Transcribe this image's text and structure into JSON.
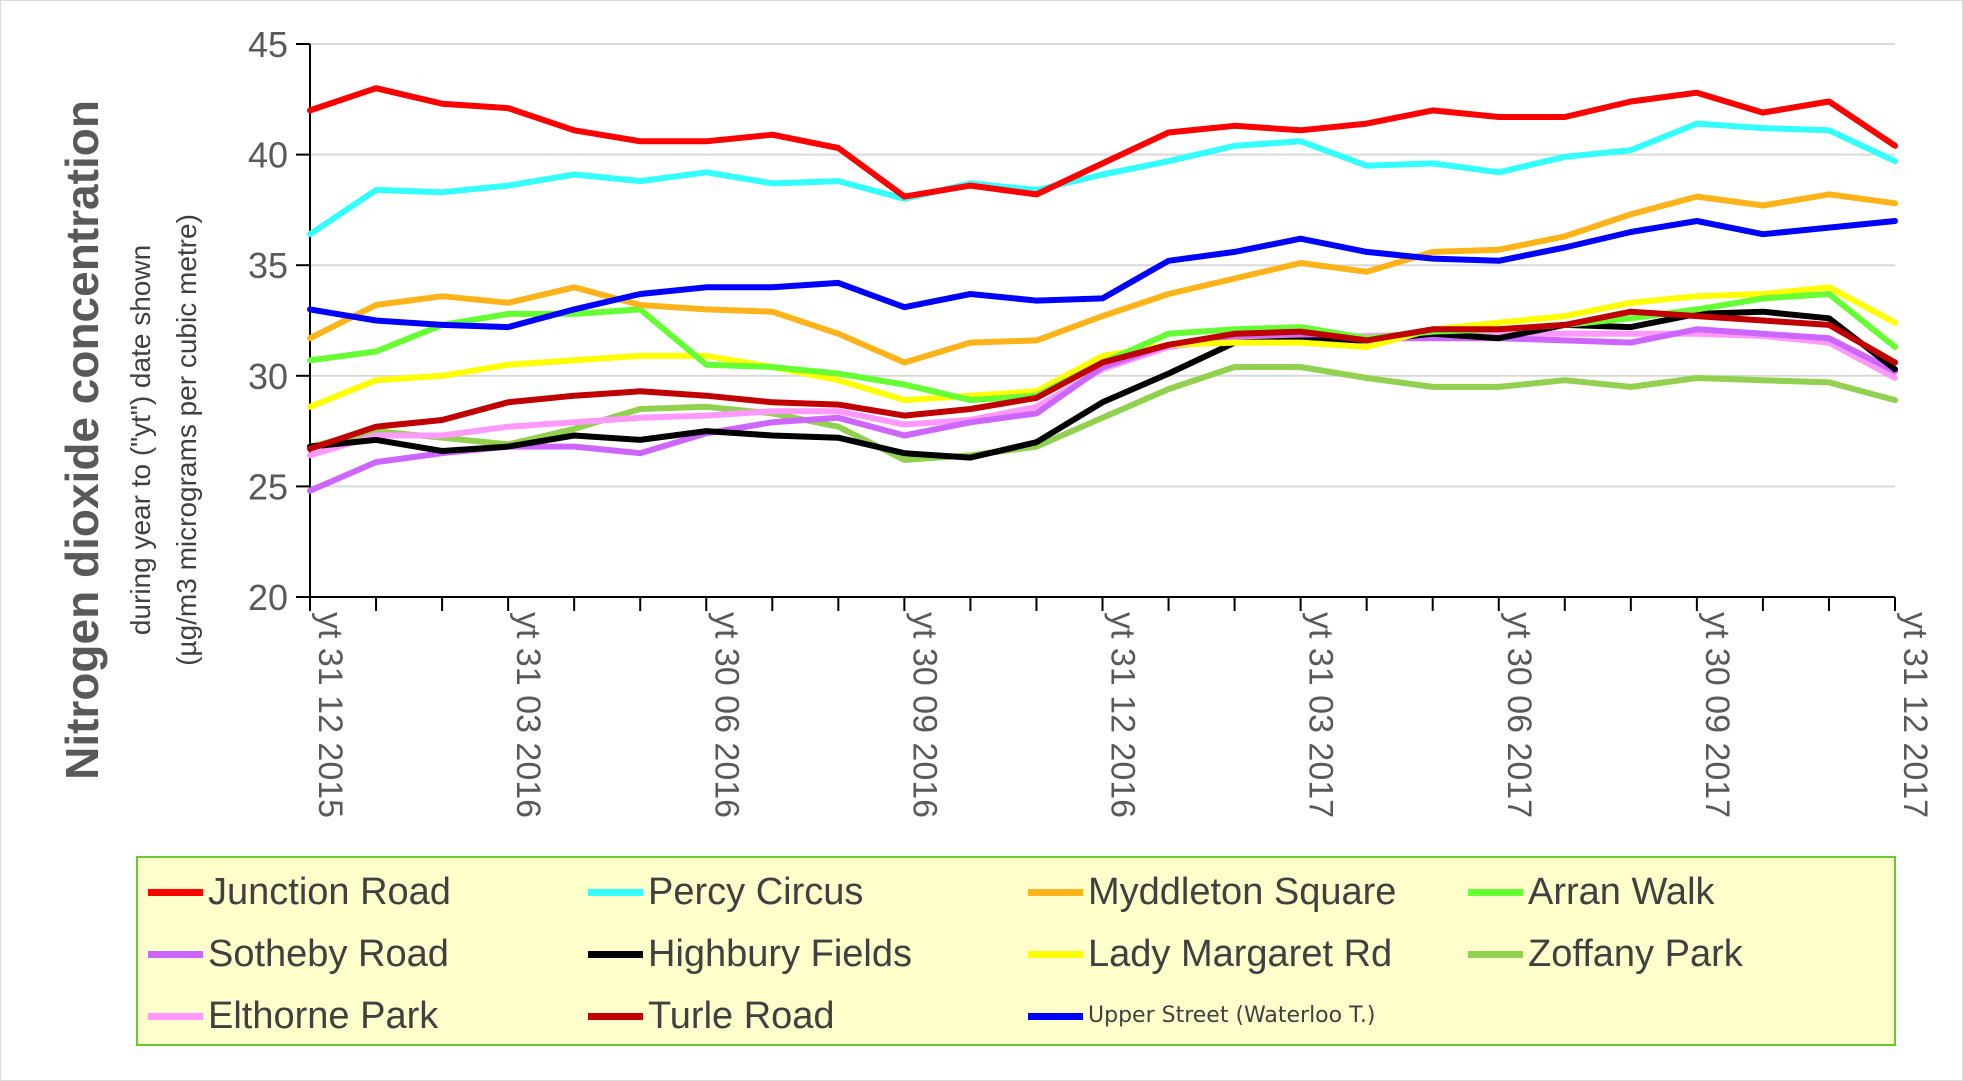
{
  "chart_data": {
    "type": "line",
    "title": "Nitrogen dioxide concentration",
    "ylabel_line1": "during year to (\"yt\") date shown",
    "ylabel_line2": "(µg/m3 micrograms per cubic metre)",
    "ylim": [
      20,
      45
    ],
    "yticks": [
      20,
      25,
      30,
      35,
      40,
      45
    ],
    "grid": true,
    "legend_position": "bottom",
    "x_tick_labels": [
      "yt 31 12 2015",
      "yt 31 03 2016",
      "yt 30 06 2016",
      "yt 30 09 2016",
      "yt 31 12 2016",
      "yt 31 03 2017",
      "yt 30 06 2017",
      "yt 30 09 2017",
      "yt 31 12 2017"
    ],
    "series": [
      {
        "name": "Junction Road",
        "color": "#ff0000",
        "values": [
          42.0,
          43.0,
          42.3,
          42.1,
          41.1,
          40.6,
          40.6,
          40.9,
          40.3,
          38.1,
          38.6,
          38.2,
          39.6,
          41.0,
          41.3,
          41.1,
          41.4,
          42.0,
          41.7,
          41.7,
          42.4,
          42.8,
          41.9,
          42.4,
          40.4
        ]
      },
      {
        "name": "Percy Circus",
        "color": "#33ffff",
        "values": [
          36.4,
          38.4,
          38.3,
          38.6,
          39.1,
          38.8,
          39.2,
          38.7,
          38.8,
          38.0,
          38.7,
          38.4,
          39.1,
          39.7,
          40.4,
          40.6,
          39.5,
          39.6,
          39.2,
          39.9,
          40.2,
          41.4,
          41.2,
          41.1,
          39.7
        ]
      },
      {
        "name": "Myddleton Square",
        "color": "#ffb31a",
        "values": [
          31.7,
          33.2,
          33.6,
          33.3,
          34.0,
          33.2,
          33.0,
          32.9,
          31.9,
          30.6,
          31.5,
          31.6,
          32.7,
          33.7,
          34.4,
          35.1,
          34.7,
          35.6,
          35.7,
          36.3,
          37.3,
          38.1,
          37.7,
          38.2,
          37.8
        ]
      },
      {
        "name": "Arran Walk",
        "color": "#66ff33",
        "values": [
          30.7,
          31.1,
          32.3,
          32.8,
          32.8,
          33.0,
          30.5,
          30.4,
          30.1,
          29.6,
          28.9,
          29.1,
          30.6,
          31.9,
          32.1,
          32.2,
          31.7,
          32.0,
          32.1,
          32.3,
          32.6,
          33.0,
          33.5,
          33.7,
          31.3
        ]
      },
      {
        "name": "Sotheby Road",
        "color": "#cc66ff",
        "values": [
          24.8,
          26.1,
          26.5,
          26.8,
          26.8,
          26.5,
          27.4,
          27.9,
          28.1,
          27.3,
          27.9,
          28.3,
          30.4,
          31.4,
          31.8,
          31.9,
          31.7,
          31.7,
          31.7,
          31.6,
          31.5,
          32.1,
          31.9,
          31.7,
          30.2
        ]
      },
      {
        "name": "Highbury Fields",
        "color": "#000000",
        "values": [
          26.8,
          27.1,
          26.6,
          26.8,
          27.3,
          27.1,
          27.5,
          27.3,
          27.2,
          26.5,
          26.3,
          27.0,
          28.8,
          30.1,
          31.5,
          31.6,
          31.6,
          31.9,
          31.7,
          32.3,
          32.2,
          32.8,
          32.9,
          32.6,
          30.3
        ]
      },
      {
        "name": "Lady Margaret Rd",
        "color": "#ffff00",
        "values": [
          28.6,
          29.8,
          30.0,
          30.5,
          30.7,
          30.9,
          30.9,
          30.4,
          29.8,
          28.9,
          29.1,
          29.3,
          30.9,
          31.4,
          31.5,
          31.5,
          31.3,
          32.1,
          32.4,
          32.7,
          33.3,
          33.6,
          33.7,
          34.0,
          32.4
        ]
      },
      {
        "name": "Zoffany Park",
        "color": "#92d050",
        "values": [
          26.8,
          27.5,
          27.2,
          26.9,
          27.6,
          28.5,
          28.6,
          28.3,
          27.7,
          26.2,
          26.4,
          26.8,
          28.1,
          29.4,
          30.4,
          30.4,
          29.9,
          29.5,
          29.5,
          29.8,
          29.5,
          29.9,
          29.8,
          29.7,
          28.9
        ]
      },
      {
        "name": "Elthorne Park",
        "color": "#ff99ff",
        "values": [
          26.4,
          27.3,
          27.3,
          27.7,
          27.9,
          28.1,
          28.2,
          28.4,
          28.4,
          27.8,
          28.0,
          28.6,
          30.3,
          31.3,
          31.7,
          31.7,
          31.8,
          31.9,
          31.9,
          31.9,
          31.9,
          31.9,
          31.8,
          31.5,
          29.9
        ]
      },
      {
        "name": "Turle Road",
        "color": "#c00000",
        "values": [
          26.7,
          27.7,
          28.0,
          28.8,
          29.1,
          29.3,
          29.1,
          28.8,
          28.7,
          28.2,
          28.5,
          29.0,
          30.6,
          31.4,
          31.9,
          32.0,
          31.6,
          32.1,
          32.1,
          32.3,
          32.9,
          32.7,
          32.5,
          32.3,
          30.6
        ]
      },
      {
        "name": "Upper Street (Waterloo T.)",
        "color": "#0000ff",
        "values": [
          33.0,
          32.5,
          32.3,
          32.2,
          33.0,
          33.7,
          34.0,
          34.0,
          34.2,
          33.1,
          33.7,
          33.4,
          33.5,
          35.2,
          35.6,
          36.2,
          35.6,
          35.3,
          35.2,
          35.8,
          36.5,
          37.0,
          36.4,
          36.7,
          37.0
        ]
      }
    ]
  }
}
